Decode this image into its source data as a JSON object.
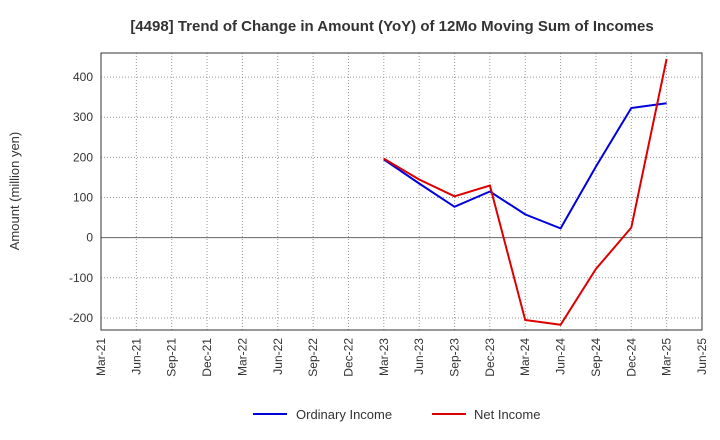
{
  "chart_data": {
    "type": "line",
    "title": "[4498]  Trend of Change in Amount (YoY) of 12Mo Moving Sum of Incomes",
    "xlabel": "",
    "ylabel": "Amount (million yen)",
    "categories": [
      "Mar-21",
      "Jun-21",
      "Sep-21",
      "Dec-21",
      "Mar-22",
      "Jun-22",
      "Sep-22",
      "Dec-22",
      "Mar-23",
      "Jun-23",
      "Sep-23",
      "Dec-23",
      "Mar-24",
      "Jun-24",
      "Sep-24",
      "Dec-24",
      "Mar-25",
      "Jun-25"
    ],
    "yticks": [
      -200,
      -100,
      0,
      100,
      200,
      300,
      400
    ],
    "ylim": [
      -230,
      460
    ],
    "grid": true,
    "legend_position": "bottom",
    "series": [
      {
        "name": "Ordinary Income",
        "color": "#0000dd",
        "values": [
          null,
          null,
          null,
          null,
          null,
          null,
          null,
          null,
          195,
          135,
          77,
          115,
          58,
          23,
          177,
          323,
          335,
          null
        ]
      },
      {
        "name": "Net Income",
        "color": "#dd0000",
        "values": [
          null,
          null,
          null,
          null,
          null,
          null,
          null,
          null,
          197,
          145,
          103,
          130,
          -205,
          -217,
          -78,
          25,
          445,
          null
        ]
      }
    ]
  }
}
